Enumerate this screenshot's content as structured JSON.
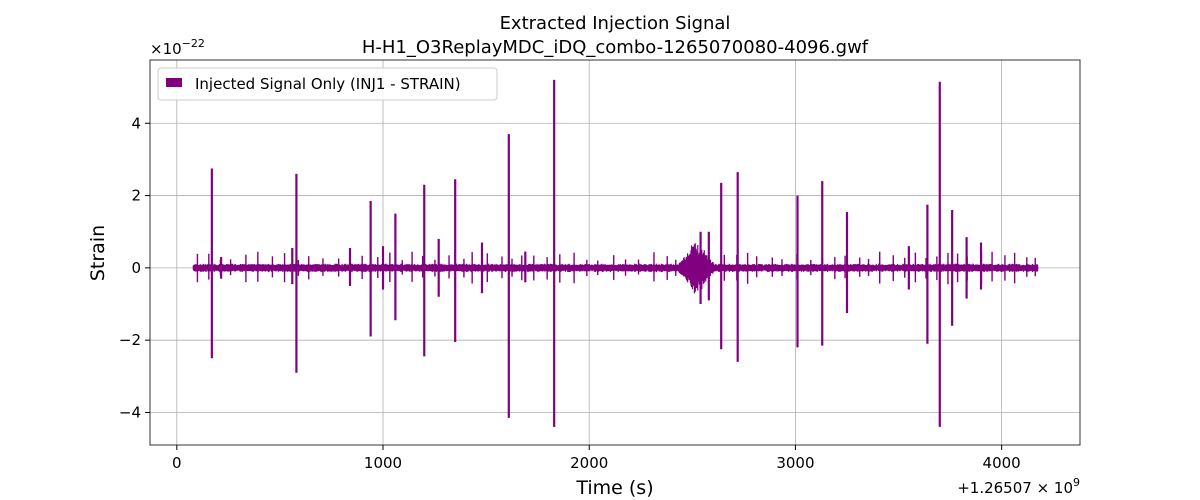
{
  "chart_data": {
    "type": "line",
    "title": "Extracted Injection Signal",
    "subtitle": "H-H1_O3ReplayMDC_iDQ_combo-1265070080-4096.gwf",
    "xlabel": "Time (s)",
    "ylabel": "Strain",
    "x_offset_label": "+1.26507 × 10",
    "x_offset_exponent": "9",
    "y_scale_label": "×10",
    "y_scale_exponent": "−22",
    "xlim": [
      -130,
      4380
    ],
    "ylim": [
      -4.9,
      5.75
    ],
    "x_ticks": [
      0,
      1000,
      2000,
      3000,
      4000
    ],
    "x_tick_labels": [
      "0",
      "1000",
      "2000",
      "3000",
      "4000"
    ],
    "y_ticks": [
      -4,
      -2,
      0,
      2,
      4
    ],
    "y_tick_labels": [
      "−4",
      "−2",
      "0",
      "2",
      "4"
    ],
    "grid": true,
    "legend_position": "top-left",
    "series": [
      {
        "name": "Injected Signal Only (INJ1 - STRAIN)",
        "color": "#800080",
        "x_range": [
          80,
          4176
        ],
        "baseline_amplitude": 0.12,
        "spikes": [
          {
            "t": 170,
            "max": 2.75,
            "min": -2.5
          },
          {
            "t": 215,
            "max": 0.3,
            "min": -0.3
          },
          {
            "t": 560,
            "max": 0.55,
            "min": -0.45
          },
          {
            "t": 580,
            "max": 2.6,
            "min": -2.9
          },
          {
            "t": 840,
            "max": 0.55,
            "min": -0.5
          },
          {
            "t": 940,
            "max": 1.85,
            "min": -1.9
          },
          {
            "t": 1000,
            "max": 0.6,
            "min": -0.6
          },
          {
            "t": 1060,
            "max": 1.5,
            "min": -1.45
          },
          {
            "t": 1200,
            "max": 2.3,
            "min": -2.45
          },
          {
            "t": 1270,
            "max": 0.8,
            "min": -0.8
          },
          {
            "t": 1350,
            "max": 2.45,
            "min": -2.05
          },
          {
            "t": 1480,
            "max": 0.7,
            "min": -0.7
          },
          {
            "t": 1610,
            "max": 3.7,
            "min": -4.15
          },
          {
            "t": 1690,
            "max": 0.45,
            "min": -0.4
          },
          {
            "t": 1830,
            "max": 5.2,
            "min": -4.4
          },
          {
            "t": 2540,
            "max": 1.0,
            "min": -1.0
          },
          {
            "t": 2580,
            "max": 1.0,
            "min": -0.9
          },
          {
            "t": 2640,
            "max": 2.35,
            "min": -2.25
          },
          {
            "t": 2720,
            "max": 2.65,
            "min": -2.6
          },
          {
            "t": 3010,
            "max": 2.0,
            "min": -2.2
          },
          {
            "t": 3130,
            "max": 2.4,
            "min": -2.15
          },
          {
            "t": 3250,
            "max": 1.55,
            "min": -1.25
          },
          {
            "t": 3550,
            "max": 0.6,
            "min": -0.6
          },
          {
            "t": 3640,
            "max": 1.75,
            "min": -2.1
          },
          {
            "t": 3700,
            "max": 5.15,
            "min": -4.4
          },
          {
            "t": 3760,
            "max": 1.6,
            "min": -1.6
          },
          {
            "t": 3830,
            "max": 0.85,
            "min": -0.85
          },
          {
            "t": 3900,
            "max": 0.7,
            "min": -0.6
          }
        ],
        "bursts": [
          {
            "start": 2420,
            "end": 2620,
            "amplitude": 0.85
          }
        ]
      }
    ]
  }
}
